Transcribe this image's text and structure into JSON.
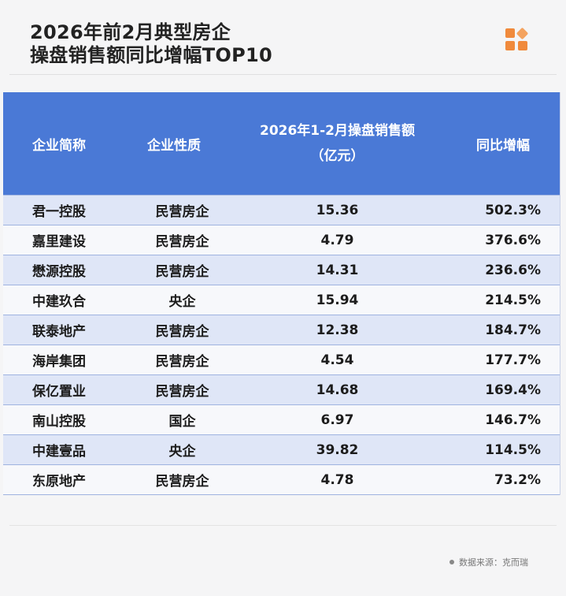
{
  "title": {
    "line1": "2026年前2月典型房企",
    "line2": "操盘销售额同比增幅TOP10"
  },
  "table": {
    "headers": {
      "company": "企业简称",
      "type": "企业性质",
      "sales_line1": "2026年1-2月操盘销售额",
      "sales_line2": "（亿元）",
      "growth": "同比增幅"
    },
    "rows": [
      {
        "company": "君一控股",
        "type": "民营房企",
        "sales": "15.36",
        "growth": "502.3%"
      },
      {
        "company": "嘉里建设",
        "type": "民营房企",
        "sales": "4.79",
        "growth": "376.6%"
      },
      {
        "company": "懋源控股",
        "type": "民营房企",
        "sales": "14.31",
        "growth": "236.6%"
      },
      {
        "company": "中建玖合",
        "type": "央企",
        "sales": "15.94",
        "growth": "214.5%"
      },
      {
        "company": "联泰地产",
        "type": "民营房企",
        "sales": "12.38",
        "growth": "184.7%"
      },
      {
        "company": "海岸集团",
        "type": "民营房企",
        "sales": "4.54",
        "growth": "177.7%"
      },
      {
        "company": "保亿置业",
        "type": "民营房企",
        "sales": "14.68",
        "growth": "169.4%"
      },
      {
        "company": "南山控股",
        "type": "国企",
        "sales": "6.97",
        "growth": "146.7%"
      },
      {
        "company": "中建壹品",
        "type": "央企",
        "sales": "39.82",
        "growth": "114.5%"
      },
      {
        "company": "东原地产",
        "type": "民营房企",
        "sales": "4.78",
        "growth": "73.2%"
      }
    ]
  },
  "source": "数据来源：克而瑞",
  "logo_icon": "grid-logo-icon",
  "colors": {
    "header_bg": "#4a79d6",
    "row_odd": "#dfe6f7",
    "row_even": "#f7f8fb",
    "logo": "#f08a3c"
  }
}
